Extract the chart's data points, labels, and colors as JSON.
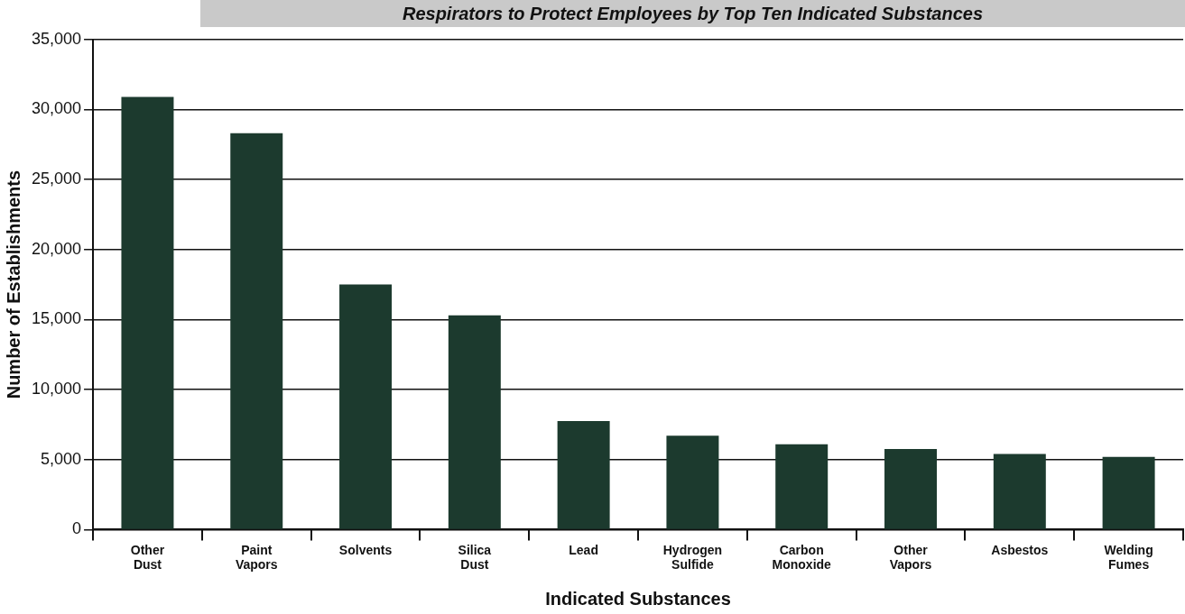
{
  "chart_data": {
    "type": "bar",
    "title": "Respirators to Protect Employees by Top Ten Indicated Substances",
    "xlabel": "Indicated Substances",
    "ylabel": "Number of Establishments",
    "categories": [
      "Other Dust",
      "Paint Vapors",
      "Solvents",
      "Silica Dust",
      "Lead",
      "Hydrogen Sulfide",
      "Carbon Monoxide",
      "Other Vapors",
      "Asbestos",
      "Welding Fumes"
    ],
    "values": [
      30900,
      28300,
      17500,
      15300,
      7750,
      6700,
      6100,
      5750,
      5400,
      5200
    ],
    "color": "#1c3a2e",
    "ylim": [
      0,
      35000
    ],
    "yticks": [
      {
        "value": 0,
        "label": "0"
      },
      {
        "value": 5000,
        "label": "5,000"
      },
      {
        "value": 10000,
        "label": "10,000"
      },
      {
        "value": 15000,
        "label": "15,000"
      },
      {
        "value": 20000,
        "label": "20,000"
      },
      {
        "value": 25000,
        "label": "25,000"
      },
      {
        "value": 30000,
        "label": "30,000"
      },
      {
        "value": 35000,
        "label": "35,000"
      }
    ],
    "grid": "y",
    "legend": false
  }
}
